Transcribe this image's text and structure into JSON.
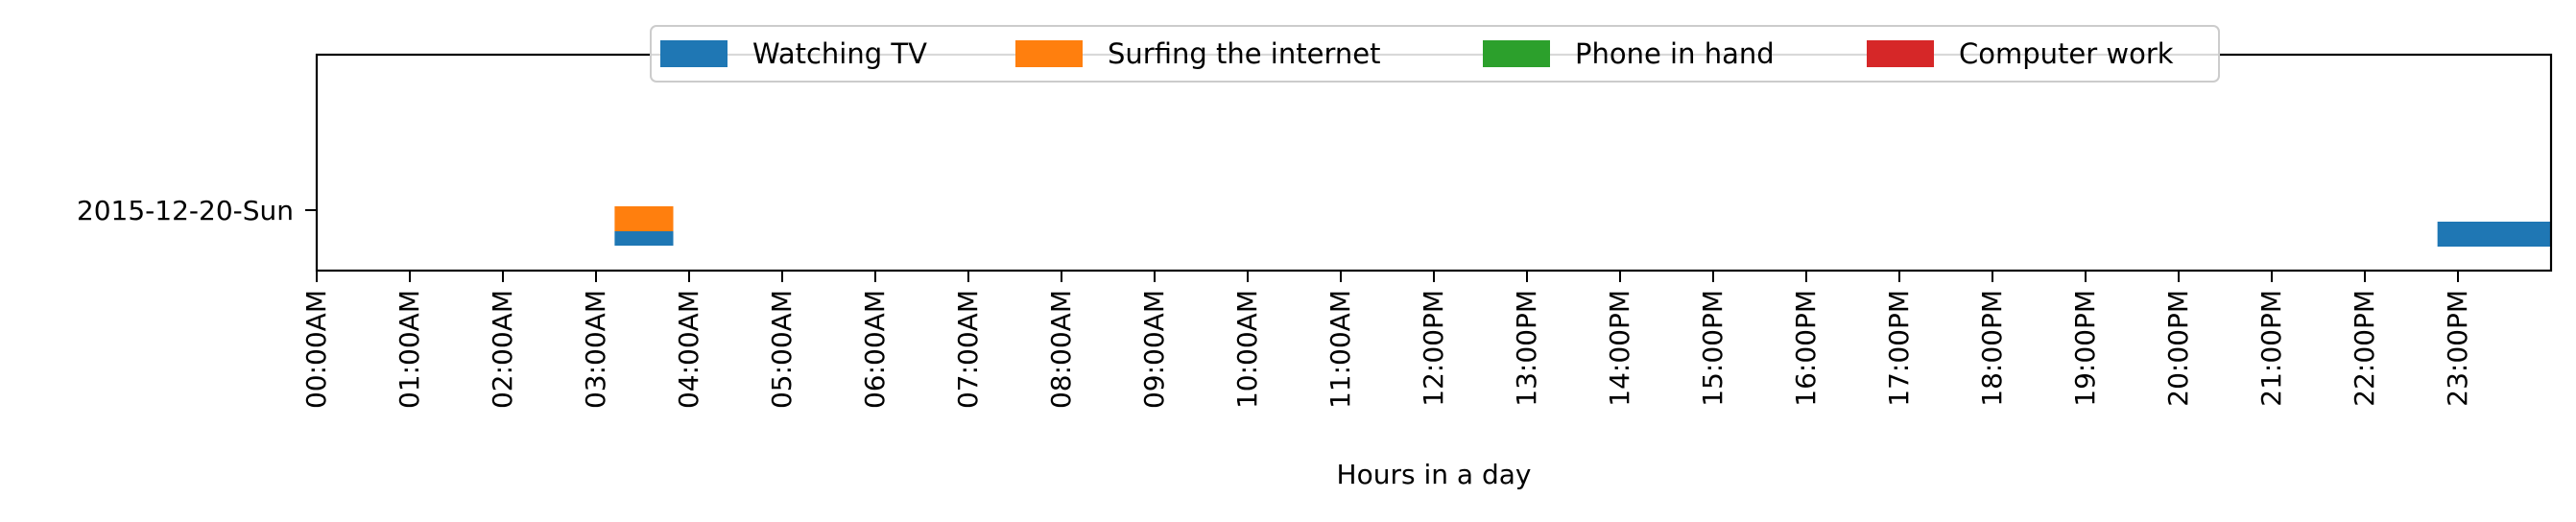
{
  "chart_data": {
    "type": "timeline",
    "title": "",
    "xlabel": "Hours in a day",
    "ylabel": "",
    "xlim": [
      0,
      24
    ],
    "x_tick_labels": [
      "00:00AM",
      "01:00AM",
      "02:00AM",
      "03:00AM",
      "04:00AM",
      "05:00AM",
      "06:00AM",
      "07:00AM",
      "08:00AM",
      "09:00AM",
      "10:00AM",
      "11:00AM",
      "12:00PM",
      "13:00PM",
      "14:00PM",
      "15:00PM",
      "16:00PM",
      "17:00PM",
      "18:00PM",
      "19:00PM",
      "20:00PM",
      "21:00PM",
      "22:00PM",
      "23:00PM"
    ],
    "y_categories": [
      "2015-12-20-Sun"
    ],
    "legend": {
      "placement": "top-center",
      "entries": [
        {
          "name": "Watching TV",
          "color": "#1f77b4"
        },
        {
          "name": "Surfing the internet",
          "color": "#ff7f0e"
        },
        {
          "name": "Phone in hand",
          "color": "#2ca02c"
        },
        {
          "name": "Computer work",
          "color": "#d62728"
        }
      ]
    },
    "series": [
      {
        "name": "Watching TV",
        "color": "#1f77b4",
        "intervals": [
          {
            "day": "2015-12-20-Sun",
            "start": 3.2,
            "end": 3.83
          },
          {
            "day": "2015-12-20-Sun",
            "start": 22.78,
            "end": 24.0
          }
        ]
      },
      {
        "name": "Surfing the internet",
        "color": "#ff7f0e",
        "intervals": [
          {
            "day": "2015-12-20-Sun",
            "start": 3.2,
            "end": 3.83
          }
        ]
      },
      {
        "name": "Phone in hand",
        "color": "#2ca02c",
        "intervals": []
      },
      {
        "name": "Computer work",
        "color": "#d62728",
        "intervals": []
      }
    ],
    "grid": false
  }
}
